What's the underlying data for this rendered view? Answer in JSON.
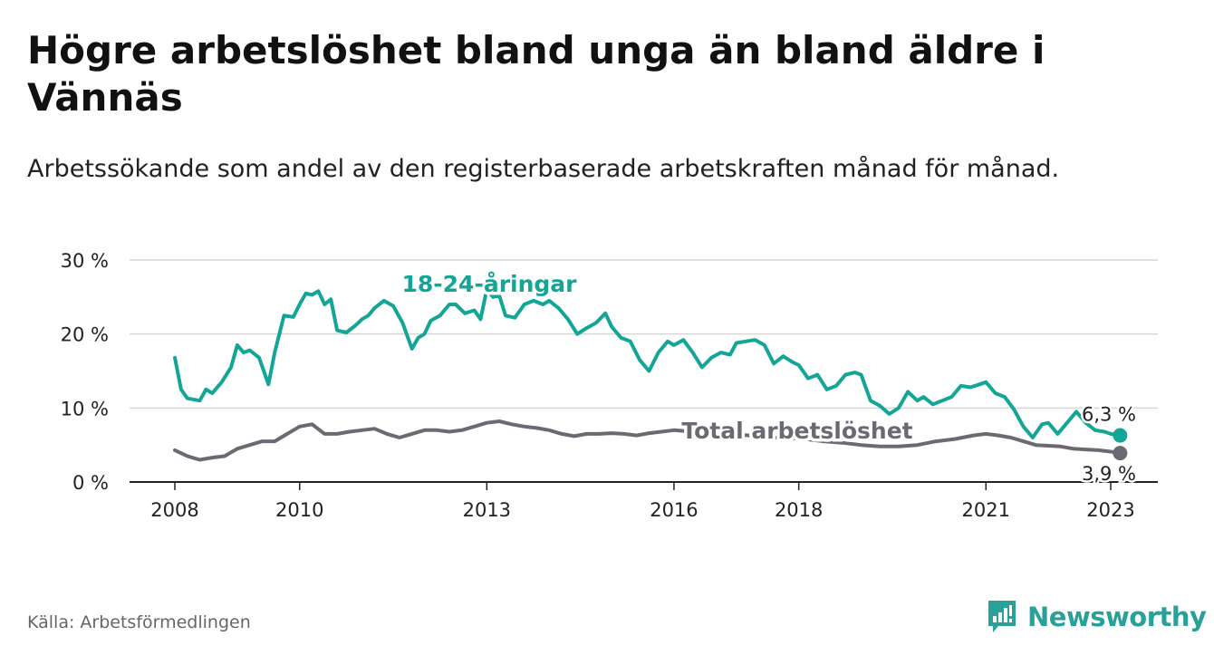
{
  "title": "Högre arbetslöshet bland unga än bland äldre i Vännäs",
  "subtitle": "Arbetssökande som andel av den registerbaserade arbetskraften månad för månad.",
  "source": "Källa: Arbetsförmedlingen",
  "brand": {
    "name": "Newsworthy",
    "icon": "newsworthy-logo-icon",
    "color": "#2aa198"
  },
  "chart_data": {
    "type": "line",
    "y_ticks": [
      "0 %",
      "10 %",
      "20 %",
      "30 %"
    ],
    "ylim": [
      0,
      30
    ],
    "x_ticks": [
      "2008",
      "2010",
      "2013",
      "2016",
      "2018",
      "2021",
      "2023"
    ],
    "grid": true,
    "series": [
      {
        "name": "18-24-åringar",
        "color": "#13a596",
        "end_label": "6,3 %",
        "x": [
          2008.0,
          2008.1,
          2008.2,
          2008.4,
          2008.5,
          2008.6,
          2008.75,
          2008.9,
          2009.0,
          2009.1,
          2009.2,
          2009.35,
          2009.5,
          2009.6,
          2009.75,
          2009.9,
          2010.0,
          2010.1,
          2010.2,
          2010.3,
          2010.4,
          2010.5,
          2010.6,
          2010.75,
          2010.9,
          2011.0,
          2011.1,
          2011.2,
          2011.35,
          2011.5,
          2011.65,
          2011.8,
          2011.9,
          2012.0,
          2012.1,
          2012.25,
          2012.4,
          2012.5,
          2012.65,
          2012.8,
          2012.9,
          2013.0,
          2013.1,
          2013.2,
          2013.3,
          2013.45,
          2013.6,
          2013.75,
          2013.9,
          2014.0,
          2014.15,
          2014.3,
          2014.45,
          2014.6,
          2014.75,
          2014.9,
          2015.0,
          2015.15,
          2015.3,
          2015.45,
          2015.6,
          2015.75,
          2015.9,
          2016.0,
          2016.15,
          2016.3,
          2016.45,
          2016.6,
          2016.75,
          2016.9,
          2017.0,
          2017.15,
          2017.3,
          2017.45,
          2017.6,
          2017.75,
          2017.9,
          2018.0,
          2018.15,
          2018.3,
          2018.45,
          2018.6,
          2018.75,
          2018.9,
          2019.0,
          2019.15,
          2019.3,
          2019.45,
          2019.6,
          2019.75,
          2019.9,
          2020.0,
          2020.15,
          2020.3,
          2020.45,
          2020.6,
          2020.75,
          2020.9,
          2021.0,
          2021.15,
          2021.3,
          2021.45,
          2021.6,
          2021.75,
          2021.9,
          2022.0,
          2022.15,
          2022.3,
          2022.45,
          2022.6,
          2022.75,
          2022.9,
          2023.0,
          2023.15
        ],
        "values": [
          16.8,
          12.5,
          11.3,
          11.0,
          12.5,
          12.0,
          13.5,
          15.5,
          18.5,
          17.5,
          17.8,
          16.8,
          13.2,
          17.5,
          22.5,
          22.3,
          24.0,
          25.5,
          25.3,
          25.8,
          24.0,
          24.7,
          20.5,
          20.2,
          21.2,
          22.0,
          22.5,
          23.5,
          24.5,
          23.8,
          21.5,
          18.0,
          19.5,
          20.0,
          21.8,
          22.5,
          24.0,
          24.0,
          22.8,
          23.2,
          22.0,
          26.0,
          25.0,
          25.2,
          22.5,
          22.2,
          24.0,
          24.5,
          24.0,
          24.5,
          23.5,
          22.0,
          20.0,
          20.8,
          21.5,
          22.8,
          21.0,
          19.5,
          19.0,
          16.5,
          15.0,
          17.5,
          19.0,
          18.5,
          19.2,
          17.5,
          15.5,
          16.8,
          17.5,
          17.2,
          18.8,
          19.0,
          19.2,
          18.5,
          16.0,
          17.0,
          16.2,
          15.8,
          14.0,
          14.5,
          12.5,
          13.0,
          14.5,
          14.8,
          14.5,
          11.0,
          10.3,
          9.2,
          10.0,
          12.2,
          11.0,
          11.5,
          10.5,
          11.0,
          11.5,
          13.0,
          12.8,
          13.2,
          13.5,
          12.0,
          11.5,
          9.8,
          7.5,
          6.0,
          7.8,
          8.0,
          6.5,
          8.0,
          9.5,
          8.0,
          7.0,
          6.8,
          6.5,
          6.3
        ]
      },
      {
        "name": "Total arbetslöshet",
        "color": "#6b6a72",
        "end_label": "3,9 %",
        "x": [
          2008.0,
          2008.2,
          2008.4,
          2008.6,
          2008.8,
          2009.0,
          2009.2,
          2009.4,
          2009.6,
          2009.8,
          2010.0,
          2010.2,
          2010.4,
          2010.6,
          2010.8,
          2011.0,
          2011.2,
          2011.4,
          2011.6,
          2011.8,
          2012.0,
          2012.2,
          2012.4,
          2012.6,
          2012.8,
          2013.0,
          2013.2,
          2013.4,
          2013.6,
          2013.8,
          2014.0,
          2014.2,
          2014.4,
          2014.6,
          2014.8,
          2015.0,
          2015.2,
          2015.4,
          2015.6,
          2015.8,
          2016.0,
          2016.3,
          2016.6,
          2016.9,
          2017.2,
          2017.5,
          2017.8,
          2018.1,
          2018.4,
          2018.7,
          2019.0,
          2019.3,
          2019.6,
          2019.9,
          2020.2,
          2020.5,
          2020.8,
          2021.0,
          2021.2,
          2021.4,
          2021.6,
          2021.8,
          2022.0,
          2022.2,
          2022.4,
          2022.6,
          2022.8,
          2023.0,
          2023.15
        ],
        "values": [
          4.3,
          3.5,
          3.0,
          3.3,
          3.5,
          4.5,
          5.0,
          5.5,
          5.5,
          6.5,
          7.5,
          7.8,
          6.5,
          6.5,
          6.8,
          7.0,
          7.2,
          6.5,
          6.0,
          6.5,
          7.0,
          7.0,
          6.8,
          7.0,
          7.5,
          8.0,
          8.2,
          7.8,
          7.5,
          7.3,
          7.0,
          6.5,
          6.2,
          6.5,
          6.5,
          6.6,
          6.5,
          6.3,
          6.6,
          6.8,
          7.0,
          6.8,
          6.6,
          6.5,
          6.3,
          6.0,
          6.0,
          5.8,
          5.5,
          5.3,
          5.0,
          4.8,
          4.8,
          5.0,
          5.5,
          5.8,
          6.3,
          6.5,
          6.3,
          6.0,
          5.5,
          5.0,
          4.9,
          4.8,
          4.5,
          4.4,
          4.3,
          4.1,
          3.9
        ]
      }
    ]
  }
}
